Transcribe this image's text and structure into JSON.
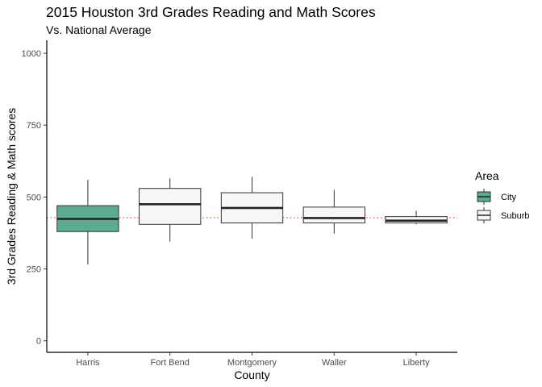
{
  "chart_data": {
    "type": "box",
    "title": "2015 Houston 3rd Grades Reading and Math Scores",
    "subtitle": "Vs. National Average",
    "xlabel": "County",
    "ylabel": "3rd Grades Reading & Math scores",
    "ylim": [
      -40,
      1045
    ],
    "y_ticks": [
      0,
      250,
      500,
      750,
      1000
    ],
    "categories": [
      "Harris",
      "Fort Bend",
      "Montgomery",
      "Waller",
      "Liberty"
    ],
    "reference_line": {
      "value": 428,
      "style": "dotted",
      "color": "#e8412c"
    },
    "legend": {
      "title": "Area",
      "entries": [
        {
          "label": "City",
          "color": "#5aab91"
        },
        {
          "label": "Suburb",
          "color": "#f7f7f7"
        }
      ]
    },
    "boxes": [
      {
        "category": "Harris",
        "area": "City",
        "min": 265,
        "q1": 380,
        "median": 424,
        "q3": 470,
        "max": 560
      },
      {
        "category": "Fort Bend",
        "area": "Suburb",
        "min": 345,
        "q1": 405,
        "median": 475,
        "q3": 530,
        "max": 565
      },
      {
        "category": "Montgomery",
        "area": "Suburb",
        "min": 355,
        "q1": 410,
        "median": 462,
        "q3": 515,
        "max": 570
      },
      {
        "category": "Waller",
        "area": "Suburb",
        "min": 373,
        "q1": 410,
        "median": 427,
        "q3": 465,
        "max": 525
      },
      {
        "category": "Liberty",
        "area": "Suburb",
        "min": 405,
        "q1": 410,
        "median": 418,
        "q3": 432,
        "max": 452
      }
    ],
    "grid": false,
    "legend_position": "right"
  }
}
